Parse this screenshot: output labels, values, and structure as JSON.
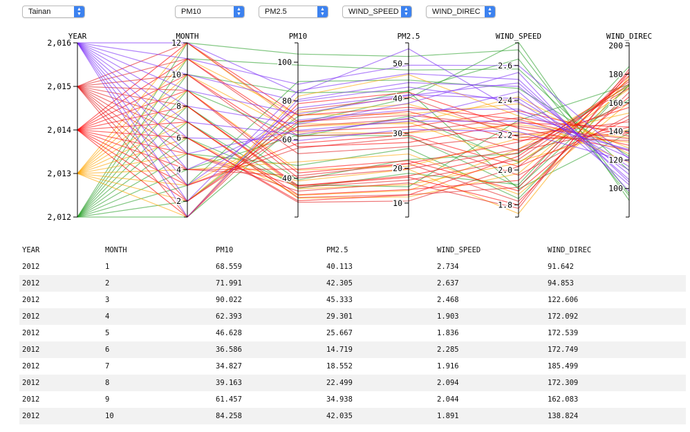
{
  "controls": {
    "city": "Tainan",
    "selects": [
      "PM10",
      "PM2.5",
      "WIND_SPEED",
      "WIND_DIREC"
    ]
  },
  "chart_data": {
    "type": "parallel-coordinates",
    "dimensions": [
      {
        "name": "YEAR",
        "domain": [
          2012,
          2016
        ],
        "ticks": [
          2012,
          2013,
          2014,
          2015,
          2016
        ],
        "tick_labels": [
          "2,012",
          "2,013",
          "2,014",
          "2,015",
          "2,016"
        ]
      },
      {
        "name": "MONTH",
        "domain": [
          1,
          12
        ],
        "ticks": [
          2,
          4,
          6,
          8,
          10,
          12
        ],
        "tick_labels": [
          "2",
          "4",
          "6",
          "8",
          "10",
          "12"
        ]
      },
      {
        "name": "PM10",
        "domain": [
          20,
          110
        ],
        "ticks": [
          40,
          60,
          80,
          100
        ],
        "tick_labels": [
          "40",
          "60",
          "80",
          "100"
        ]
      },
      {
        "name": "PM2.5",
        "domain": [
          6,
          56
        ],
        "ticks": [
          10,
          20,
          30,
          40,
          50
        ],
        "tick_labels": [
          "10",
          "20",
          "30",
          "40",
          "50"
        ]
      },
      {
        "name": "WIND_SPEED",
        "domain": [
          1.73,
          2.73
        ],
        "ticks": [
          1.8,
          2.0,
          2.2,
          2.4,
          2.6
        ],
        "tick_labels": [
          "1.8",
          "2.0",
          "2.2",
          "2.4",
          "2.6"
        ]
      },
      {
        "name": "WIND_DIREC",
        "domain": [
          80,
          202
        ],
        "ticks": [
          100,
          120,
          140,
          160,
          180,
          200
        ],
        "tick_labels": [
          "100",
          "120",
          "140",
          "160",
          "180",
          "200"
        ]
      }
    ],
    "year_colors": {
      "2012": "#2ca02c",
      "2013": "#ffa500",
      "2014": "#ff0000",
      "2015": "#e31a1c",
      "2016": "#7b2ff7"
    },
    "series": [
      {
        "year": 2012,
        "records": [
          [
            2012,
            1,
            68.559,
            40.113,
            2.734,
            91.642
          ],
          [
            2012,
            2,
            71.991,
            42.305,
            2.637,
            94.853
          ],
          [
            2012,
            3,
            90.022,
            45.333,
            2.468,
            122.606
          ],
          [
            2012,
            4,
            62.393,
            29.301,
            1.903,
            172.092
          ],
          [
            2012,
            5,
            46.628,
            25.667,
            1.836,
            172.539
          ],
          [
            2012,
            6,
            36.586,
            14.719,
            2.285,
            172.749
          ],
          [
            2012,
            7,
            34.827,
            18.552,
            1.916,
            185.499
          ],
          [
            2012,
            8,
            39.163,
            22.499,
            2.094,
            172.309
          ],
          [
            2012,
            9,
            61.457,
            34.938,
            2.044,
            162.083
          ],
          [
            2012,
            10,
            84.258,
            42.035,
            1.891,
            138.824
          ],
          [
            2012,
            11,
            98.5,
            48.2,
            2.58,
            112.4
          ],
          [
            2012,
            12,
            104.2,
            52.1,
            2.69,
            96.3
          ]
        ]
      },
      {
        "year": 2013,
        "records": [
          [
            2013,
            1,
            82.4,
            46.9,
            2.31,
            118.2
          ],
          [
            2013,
            2,
            74.2,
            38.4,
            2.21,
            132.5
          ],
          [
            2013,
            3,
            66.7,
            33.2,
            2.05,
            141.3
          ],
          [
            2013,
            4,
            48.5,
            24.1,
            1.86,
            160.4
          ],
          [
            2013,
            5,
            38.6,
            19.7,
            1.75,
            178.5
          ],
          [
            2013,
            6,
            31.2,
            13.6,
            2.12,
            171.8
          ],
          [
            2013,
            7,
            29.8,
            11.8,
            1.98,
            176.6
          ],
          [
            2013,
            8,
            34.6,
            15.3,
            2.04,
            169.7
          ],
          [
            2013,
            9,
            44.2,
            20.6,
            2.18,
            152.9
          ],
          [
            2013,
            10,
            63.5,
            30.1,
            2.26,
            135.6
          ],
          [
            2013,
            11,
            72.8,
            35.6,
            2.38,
            128.2
          ],
          [
            2013,
            12,
            68.1,
            32.8,
            2.42,
            124.1
          ]
        ]
      },
      {
        "year": 2014,
        "records": [
          [
            2014,
            1,
            78.6,
            41.8,
            2.24,
            126.7
          ],
          [
            2014,
            2,
            69.4,
            36.3,
            2.17,
            138.8
          ],
          [
            2014,
            3,
            58.1,
            29.6,
            2.02,
            148.5
          ],
          [
            2014,
            4,
            44.7,
            22.2,
            1.88,
            164.2
          ],
          [
            2014,
            5,
            36.1,
            17.4,
            1.8,
            181.3
          ],
          [
            2014,
            6,
            28.4,
            12.3,
            2.08,
            174.9
          ],
          [
            2014,
            7,
            31.5,
            13.9,
            1.94,
            179.1
          ],
          [
            2014,
            8,
            36.2,
            17.8,
            2.1,
            170.4
          ],
          [
            2014,
            9,
            42.8,
            21.4,
            2.16,
            156.8
          ],
          [
            2014,
            10,
            56.3,
            27.4,
            2.27,
            143.1
          ],
          [
            2014,
            11,
            64.2,
            31.9,
            2.34,
            136.6
          ],
          [
            2014,
            12,
            72.5,
            37.5,
            2.29,
            130.2
          ]
        ]
      },
      {
        "year": 2015,
        "records": [
          [
            2015,
            1,
            75.2,
            40.4,
            2.19,
            133.6
          ],
          [
            2015,
            2,
            66.9,
            34.1,
            2.11,
            142.9
          ],
          [
            2015,
            3,
            55.6,
            28.8,
            1.97,
            151.2
          ],
          [
            2015,
            4,
            41.3,
            21.3,
            1.82,
            167.5
          ],
          [
            2015,
            5,
            33.4,
            15.8,
            1.78,
            183.6
          ],
          [
            2015,
            6,
            27.6,
            10.6,
            2.02,
            176.4
          ],
          [
            2015,
            7,
            30.1,
            12.4,
            1.9,
            181.8
          ],
          [
            2015,
            8,
            35.4,
            16.6,
            2.06,
            173.3
          ],
          [
            2015,
            9,
            40.2,
            19.8,
            2.12,
            159.6
          ],
          [
            2015,
            10,
            52.7,
            26.2,
            2.2,
            146.7
          ],
          [
            2015,
            11,
            61.8,
            30.3,
            2.3,
            139.1
          ],
          [
            2015,
            12,
            69.3,
            35.2,
            2.25,
            134.8
          ]
        ]
      },
      {
        "year": 2016,
        "records": [
          [
            2016,
            1,
            80.7,
            44.6,
            2.48,
            109.8
          ],
          [
            2016,
            2,
            85.3,
            47.2,
            2.52,
            104.5
          ],
          [
            2016,
            3,
            76.4,
            41.1,
            2.41,
            115.3
          ],
          [
            2016,
            4,
            70.1,
            36.8,
            2.35,
            121.7
          ],
          [
            2016,
            5,
            64.8,
            33.5,
            2.28,
            127.4
          ],
          [
            2016,
            6,
            59.5,
            31.2,
            2.22,
            118.9
          ],
          [
            2016,
            7,
            62.6,
            34.4,
            2.45,
            102.6
          ],
          [
            2016,
            8,
            67.9,
            38.7,
            2.56,
            98.1
          ],
          [
            2016,
            9,
            73.3,
            40.9,
            2.5,
            106.2
          ],
          [
            2016,
            10,
            79.8,
            43.3,
            2.39,
            112.8
          ],
          [
            2016,
            11,
            88.6,
            49.6,
            2.6,
            120.6
          ],
          [
            2016,
            12,
            84.1,
            54.3,
            2.33,
            126.3
          ]
        ]
      }
    ]
  },
  "table": {
    "columns": [
      "YEAR",
      "MONTH",
      "PM10",
      "PM2.5",
      "WIND_SPEED",
      "WIND_DIREC"
    ],
    "rows": [
      [
        "2012",
        "1",
        "68.559",
        "40.113",
        "2.734",
        "91.642"
      ],
      [
        "2012",
        "2",
        "71.991",
        "42.305",
        "2.637",
        "94.853"
      ],
      [
        "2012",
        "3",
        "90.022",
        "45.333",
        "2.468",
        "122.606"
      ],
      [
        "2012",
        "4",
        "62.393",
        "29.301",
        "1.903",
        "172.092"
      ],
      [
        "2012",
        "5",
        "46.628",
        "25.667",
        "1.836",
        "172.539"
      ],
      [
        "2012",
        "6",
        "36.586",
        "14.719",
        "2.285",
        "172.749"
      ],
      [
        "2012",
        "7",
        "34.827",
        "18.552",
        "1.916",
        "185.499"
      ],
      [
        "2012",
        "8",
        "39.163",
        "22.499",
        "2.094",
        "172.309"
      ],
      [
        "2012",
        "9",
        "61.457",
        "34.938",
        "2.044",
        "162.083"
      ],
      [
        "2012",
        "10",
        "84.258",
        "42.035",
        "1.891",
        "138.824"
      ]
    ]
  }
}
